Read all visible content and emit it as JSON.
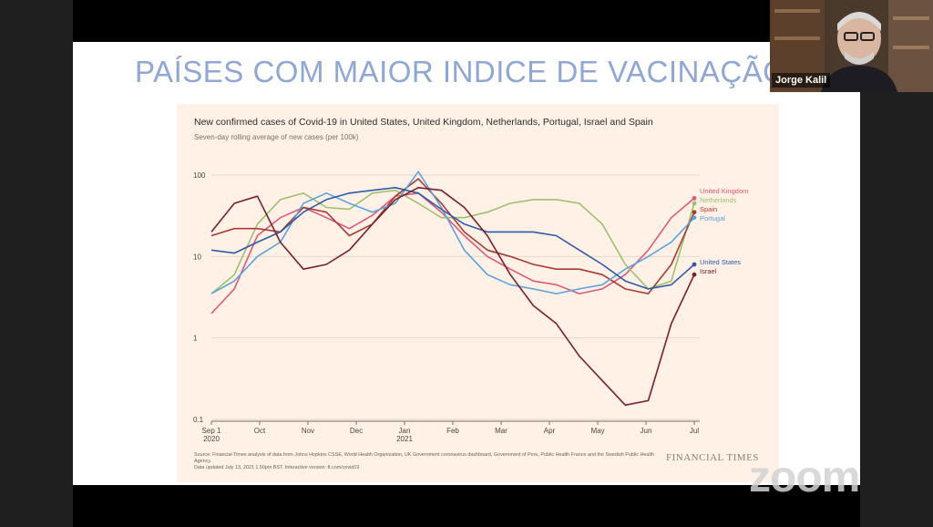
{
  "slide": {
    "title": "PAÍSES COM MAIOR INDICE DE VACINAÇÃO"
  },
  "chart_data": {
    "type": "line",
    "title": "New confirmed cases of Covid-19 in United States, United Kingdom, Netherlands, Portugal, Israel and Spain",
    "subtitle": "Seven-day rolling average of new cases (per 100k)",
    "yscale": "log",
    "ylim": [
      0.1,
      100
    ],
    "y_ticks": [
      "100",
      "10",
      "1",
      "0.1"
    ],
    "x_ticks": [
      "Sep 1",
      "Oct",
      "Nov",
      "Dec",
      "Jan",
      "Feb",
      "Mar",
      "Apr",
      "May",
      "Jun",
      "Jul"
    ],
    "x_sub_ticks": {
      "Sep 1": "2020",
      "Jan": "2021"
    },
    "x": [
      "Sep 1",
      "Sep 15",
      "Oct 1",
      "Oct 15",
      "Nov 1",
      "Nov 15",
      "Dec 1",
      "Dec 15",
      "Jan 1",
      "Jan 15",
      "Feb 1",
      "Feb 15",
      "Mar 1",
      "Mar 15",
      "Apr 1",
      "Apr 15",
      "May 1",
      "May 15",
      "Jun 1",
      "Jun 15",
      "Jul 1",
      "Jul 13"
    ],
    "series": [
      {
        "name": "United Kingdom",
        "color": "#e0577a",
        "values": [
          2,
          4,
          18,
          30,
          40,
          30,
          22,
          32,
          55,
          60,
          35,
          18,
          10,
          7,
          5,
          4.5,
          3.5,
          4,
          6,
          12,
          30,
          52
        ]
      },
      {
        "name": "Netherlands",
        "color": "#9fc06a",
        "values": [
          3.5,
          6,
          25,
          50,
          60,
          40,
          38,
          60,
          65,
          45,
          30,
          30,
          35,
          45,
          50,
          50,
          45,
          25,
          8,
          4,
          5,
          45
        ]
      },
      {
        "name": "Spain",
        "color": "#a83a32",
        "values": [
          18,
          22,
          22,
          20,
          40,
          35,
          18,
          25,
          55,
          90,
          45,
          20,
          12,
          10,
          8,
          7,
          7,
          6,
          4,
          3.5,
          8,
          35
        ]
      },
      {
        "name": "Portugal",
        "color": "#5aa3dc",
        "values": [
          3.5,
          5,
          10,
          15,
          45,
          60,
          45,
          35,
          45,
          110,
          40,
          12,
          6,
          4.5,
          4,
          3.5,
          4,
          4.5,
          7,
          10,
          15,
          30
        ]
      },
      {
        "name": "United States",
        "color": "#2f5aa8",
        "values": [
          12,
          11,
          15,
          20,
          35,
          50,
          60,
          65,
          70,
          60,
          38,
          25,
          20,
          20,
          20,
          18,
          12,
          8,
          5,
          4,
          4.5,
          8
        ]
      },
      {
        "name": "Israel",
        "color": "#7a1e2a",
        "values": [
          20,
          45,
          55,
          15,
          7,
          8,
          12,
          25,
          50,
          70,
          65,
          40,
          18,
          6,
          2.5,
          1.5,
          0.6,
          0.3,
          0.15,
          0.17,
          1.5,
          6
        ]
      }
    ],
    "source": "Source: Financial Times analysis of data from Johns Hopkins CSSE, World Health Organization, UK Government coronavirus dashboard, Government of Peru, Public Health France and the Swedish Public Health Agency.",
    "updated": "Data updated July 13, 2021 1.50pm BST. Interactive version: ft.com/covid19",
    "publisher": "FINANCIAL TIMES"
  },
  "webcam": {
    "speaker_name": "Jorge Kalil"
  },
  "zoom": {
    "watermark": "zoom"
  }
}
